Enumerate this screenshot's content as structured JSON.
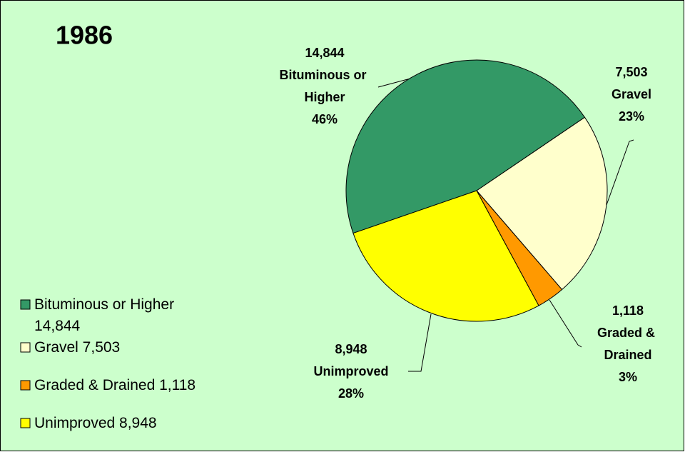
{
  "chart_data": {
    "type": "pie",
    "title": "1986",
    "categories": [
      "Bituminous or Higher",
      "Gravel",
      "Graded & Drained",
      "Unimproved"
    ],
    "values": [
      14844,
      7503,
      1118,
      8948
    ],
    "value_labels": [
      "14,844",
      "7,503",
      "1,118",
      "8,948"
    ],
    "percent_labels": [
      "46%",
      "23%",
      "3%",
      "28%"
    ],
    "legend": [
      "Bituminous or Higher 14,844",
      "Gravel 7,503",
      "Graded & Drained 1,118",
      "Unimproved 8,948"
    ],
    "colors": [
      "#339966",
      "#ffffcc",
      "#ff9900",
      "#ffff00"
    ]
  }
}
